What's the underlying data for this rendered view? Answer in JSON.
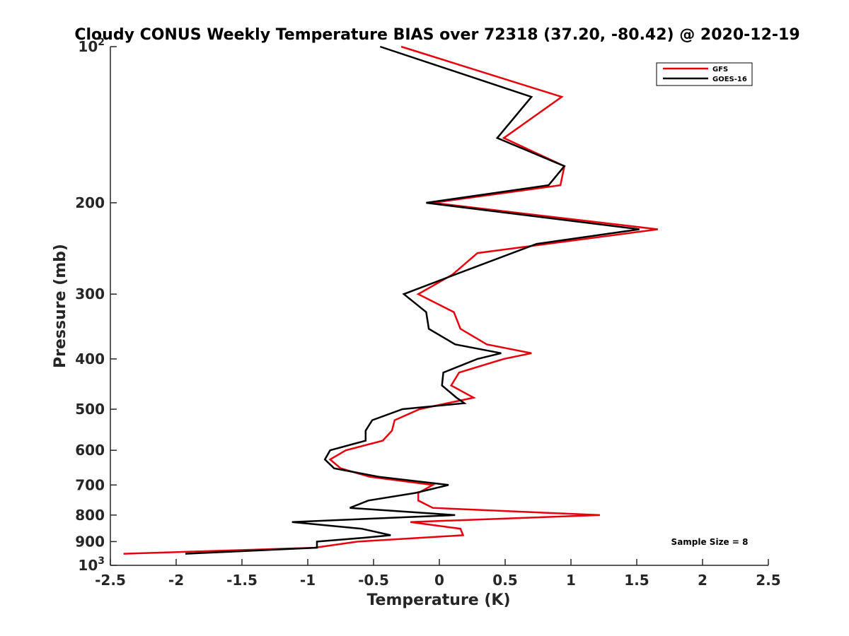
{
  "chart_data": {
    "type": "line",
    "title": "Cloudy CONUS Weekly Temperature BIAS over 72318 (37.20, -80.42) @ 2020-12-19",
    "xlabel": "Temperature (K)",
    "ylabel": "Pressure (mb)",
    "xlim": [
      -2.5,
      2.5
    ],
    "ylim": [
      100,
      1000
    ],
    "yscale": "log",
    "yaxis_reversed": true,
    "grid": false,
    "legend_position": "top-right",
    "x_tick_labels": [
      "-2.5",
      "-2",
      "-1.5",
      "-1",
      "-0.5",
      "0",
      "0.5",
      "1",
      "1.5",
      "2",
      "2.5"
    ],
    "y_tick_labels": [
      {
        "value": 100,
        "base": "10",
        "exp": "2"
      },
      {
        "value": 200,
        "text": "200"
      },
      {
        "value": 300,
        "text": "300"
      },
      {
        "value": 400,
        "text": "400"
      },
      {
        "value": 500,
        "text": "500"
      },
      {
        "value": 600,
        "text": "600"
      },
      {
        "value": 700,
        "text": "700"
      },
      {
        "value": 800,
        "text": "800"
      },
      {
        "value": 900,
        "text": "900"
      },
      {
        "value": 1000,
        "base": "10",
        "exp": "3"
      }
    ],
    "annotation": "Sample Size = 8",
    "series": [
      {
        "name": "GFS",
        "color": "#e8000b",
        "points": [
          {
            "x": -0.29,
            "y": 100
          },
          {
            "x": 0.93,
            "y": 125
          },
          {
            "x": 0.49,
            "y": 150
          },
          {
            "x": 0.95,
            "y": 170
          },
          {
            "x": 0.92,
            "y": 185
          },
          {
            "x": -0.05,
            "y": 200
          },
          {
            "x": 1.66,
            "y": 225
          },
          {
            "x": 0.29,
            "y": 250
          },
          {
            "x": 0.1,
            "y": 275
          },
          {
            "x": -0.16,
            "y": 300
          },
          {
            "x": 0.11,
            "y": 325
          },
          {
            "x": 0.16,
            "y": 350
          },
          {
            "x": 0.36,
            "y": 375
          },
          {
            "x": 0.7,
            "y": 390
          },
          {
            "x": 0.49,
            "y": 400
          },
          {
            "x": 0.15,
            "y": 425
          },
          {
            "x": 0.09,
            "y": 450
          },
          {
            "x": 0.26,
            "y": 475
          },
          {
            "x": -0.15,
            "y": 500
          },
          {
            "x": -0.34,
            "y": 525
          },
          {
            "x": -0.36,
            "y": 550
          },
          {
            "x": -0.43,
            "y": 575
          },
          {
            "x": -0.71,
            "y": 600
          },
          {
            "x": -0.83,
            "y": 625
          },
          {
            "x": -0.75,
            "y": 650
          },
          {
            "x": -0.53,
            "y": 675
          },
          {
            "x": -0.05,
            "y": 700
          },
          {
            "x": -0.16,
            "y": 725
          },
          {
            "x": -0.16,
            "y": 750
          },
          {
            "x": -0.05,
            "y": 775
          },
          {
            "x": 1.22,
            "y": 800
          },
          {
            "x": -0.22,
            "y": 825
          },
          {
            "x": 0.16,
            "y": 850
          },
          {
            "x": 0.18,
            "y": 875
          },
          {
            "x": -0.62,
            "y": 900
          },
          {
            "x": -0.95,
            "y": 925
          },
          {
            "x": -2.4,
            "y": 950
          }
        ]
      },
      {
        "name": "GOES-16",
        "color": "#000000",
        "points": [
          {
            "x": -0.45,
            "y": 100
          },
          {
            "x": 0.7,
            "y": 125
          },
          {
            "x": 0.44,
            "y": 150
          },
          {
            "x": 0.95,
            "y": 170
          },
          {
            "x": 0.83,
            "y": 185
          },
          {
            "x": -0.1,
            "y": 200
          },
          {
            "x": 1.52,
            "y": 225
          },
          {
            "x": 0.74,
            "y": 240
          },
          {
            "x": 0.12,
            "y": 275
          },
          {
            "x": -0.27,
            "y": 300
          },
          {
            "x": -0.1,
            "y": 325
          },
          {
            "x": -0.08,
            "y": 350
          },
          {
            "x": 0.12,
            "y": 375
          },
          {
            "x": 0.47,
            "y": 390
          },
          {
            "x": 0.29,
            "y": 400
          },
          {
            "x": 0.03,
            "y": 425
          },
          {
            "x": 0.02,
            "y": 450
          },
          {
            "x": 0.13,
            "y": 475
          },
          {
            "x": 0.19,
            "y": 487
          },
          {
            "x": -0.28,
            "y": 500
          },
          {
            "x": -0.51,
            "y": 525
          },
          {
            "x": -0.56,
            "y": 550
          },
          {
            "x": -0.56,
            "y": 575
          },
          {
            "x": -0.83,
            "y": 600
          },
          {
            "x": -0.87,
            "y": 625
          },
          {
            "x": -0.8,
            "y": 650
          },
          {
            "x": -0.46,
            "y": 675
          },
          {
            "x": 0.07,
            "y": 700
          },
          {
            "x": -0.18,
            "y": 725
          },
          {
            "x": -0.54,
            "y": 750
          },
          {
            "x": -0.68,
            "y": 775
          },
          {
            "x": 0.12,
            "y": 800
          },
          {
            "x": -1.12,
            "y": 825
          },
          {
            "x": -0.59,
            "y": 850
          },
          {
            "x": -0.37,
            "y": 875
          },
          {
            "x": -0.58,
            "y": 885
          },
          {
            "x": -0.93,
            "y": 900
          },
          {
            "x": -0.93,
            "y": 925
          },
          {
            "x": -1.93,
            "y": 950
          }
        ]
      }
    ]
  }
}
